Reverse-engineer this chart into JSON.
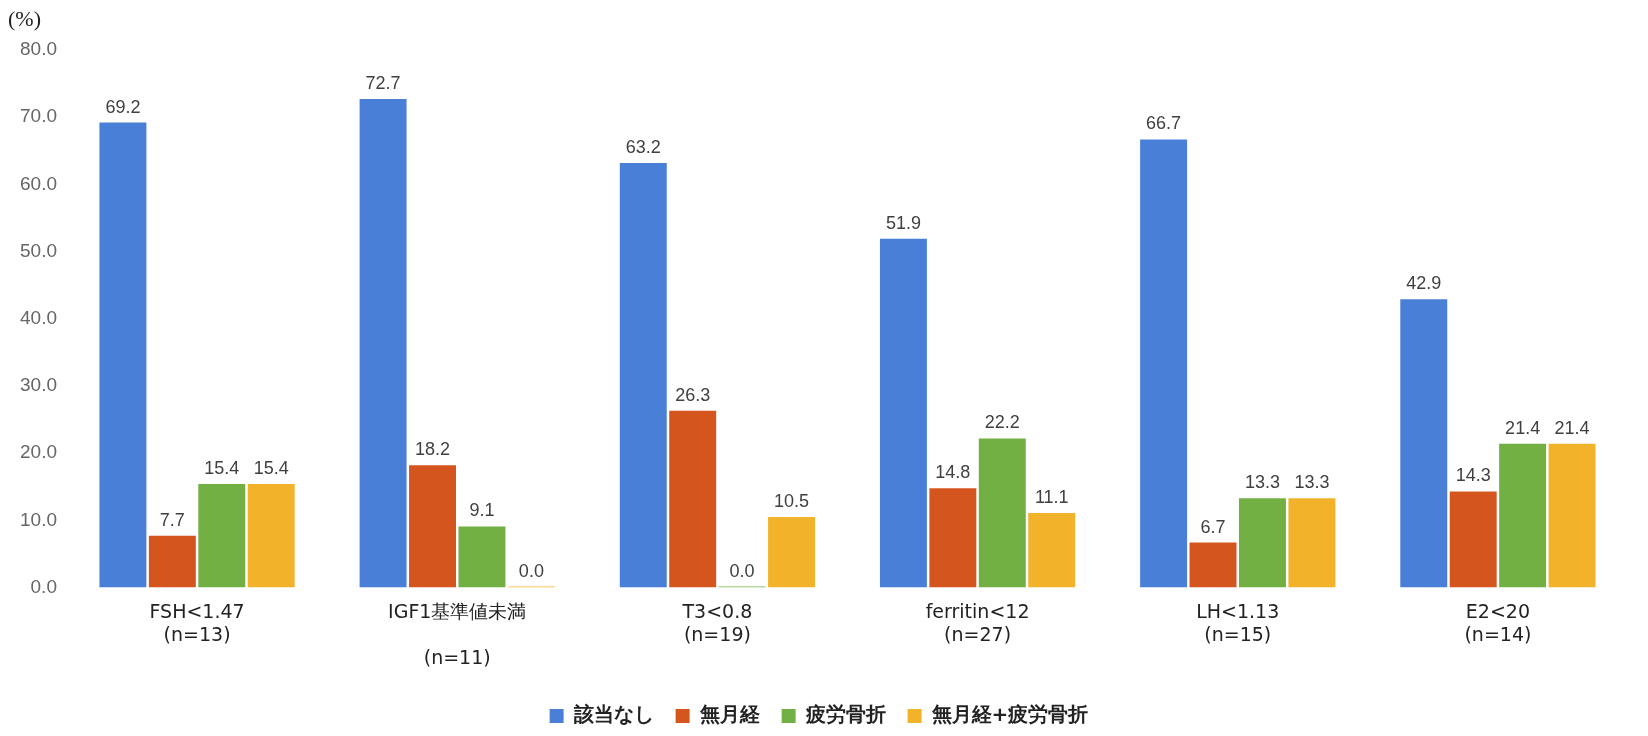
{
  "chart_data": {
    "type": "bar",
    "ylabel": "(%)",
    "categories": [
      "FSH<1.47\n(n=13)",
      "IGF1基準値未満\n\n(n=11)",
      "T3<0.8\n(n=19)",
      "ferritin<12\n(n=27)",
      "LH<1.13\n(n=15)",
      "E2<20\n(n=14)"
    ],
    "series": [
      {
        "name": "該当なし",
        "color": "#4a7fd8",
        "values": [
          69.2,
          72.7,
          63.2,
          51.9,
          66.7,
          42.9
        ],
        "value_labels": [
          "69.2",
          "72.7",
          "63.2",
          "51.9",
          "66.7",
          "42.9"
        ]
      },
      {
        "name": "無月経",
        "color": "#d4561e",
        "values": [
          7.7,
          18.2,
          26.3,
          14.8,
          6.7,
          14.3
        ],
        "value_labels": [
          "7.7",
          "18.2",
          "26.3",
          "14.8",
          "6.7",
          "14.3"
        ]
      },
      {
        "name": "疲労骨折",
        "color": "#72b043",
        "values": [
          15.4,
          9.1,
          0.0,
          22.2,
          13.3,
          21.4
        ],
        "value_labels": [
          "15.4",
          "9.1",
          "0.0",
          "22.2",
          "13.3",
          "21.4"
        ]
      },
      {
        "name": "無月経+疲労骨折",
        "color": "#f2b32a",
        "values": [
          15.4,
          0.0,
          10.5,
          11.1,
          13.3,
          21.4
        ],
        "value_labels": [
          "15.4",
          "0.0",
          "10.5",
          "11.1",
          "13.3",
          "21.4"
        ]
      }
    ],
    "ylim": [
      0,
      80
    ],
    "yticks": [
      {
        "value": 0,
        "label": "0.0"
      },
      {
        "value": 10,
        "label": "10.0"
      },
      {
        "value": 20,
        "label": "20.0"
      },
      {
        "value": 30,
        "label": "30.0"
      },
      {
        "value": 40,
        "label": "40.0"
      },
      {
        "value": 50,
        "label": "50.0"
      },
      {
        "value": 60,
        "label": "60.0"
      },
      {
        "value": 70,
        "label": "70.0"
      },
      {
        "value": 80,
        "label": "80.0"
      }
    ],
    "grid": false,
    "legend": "bottom"
  }
}
